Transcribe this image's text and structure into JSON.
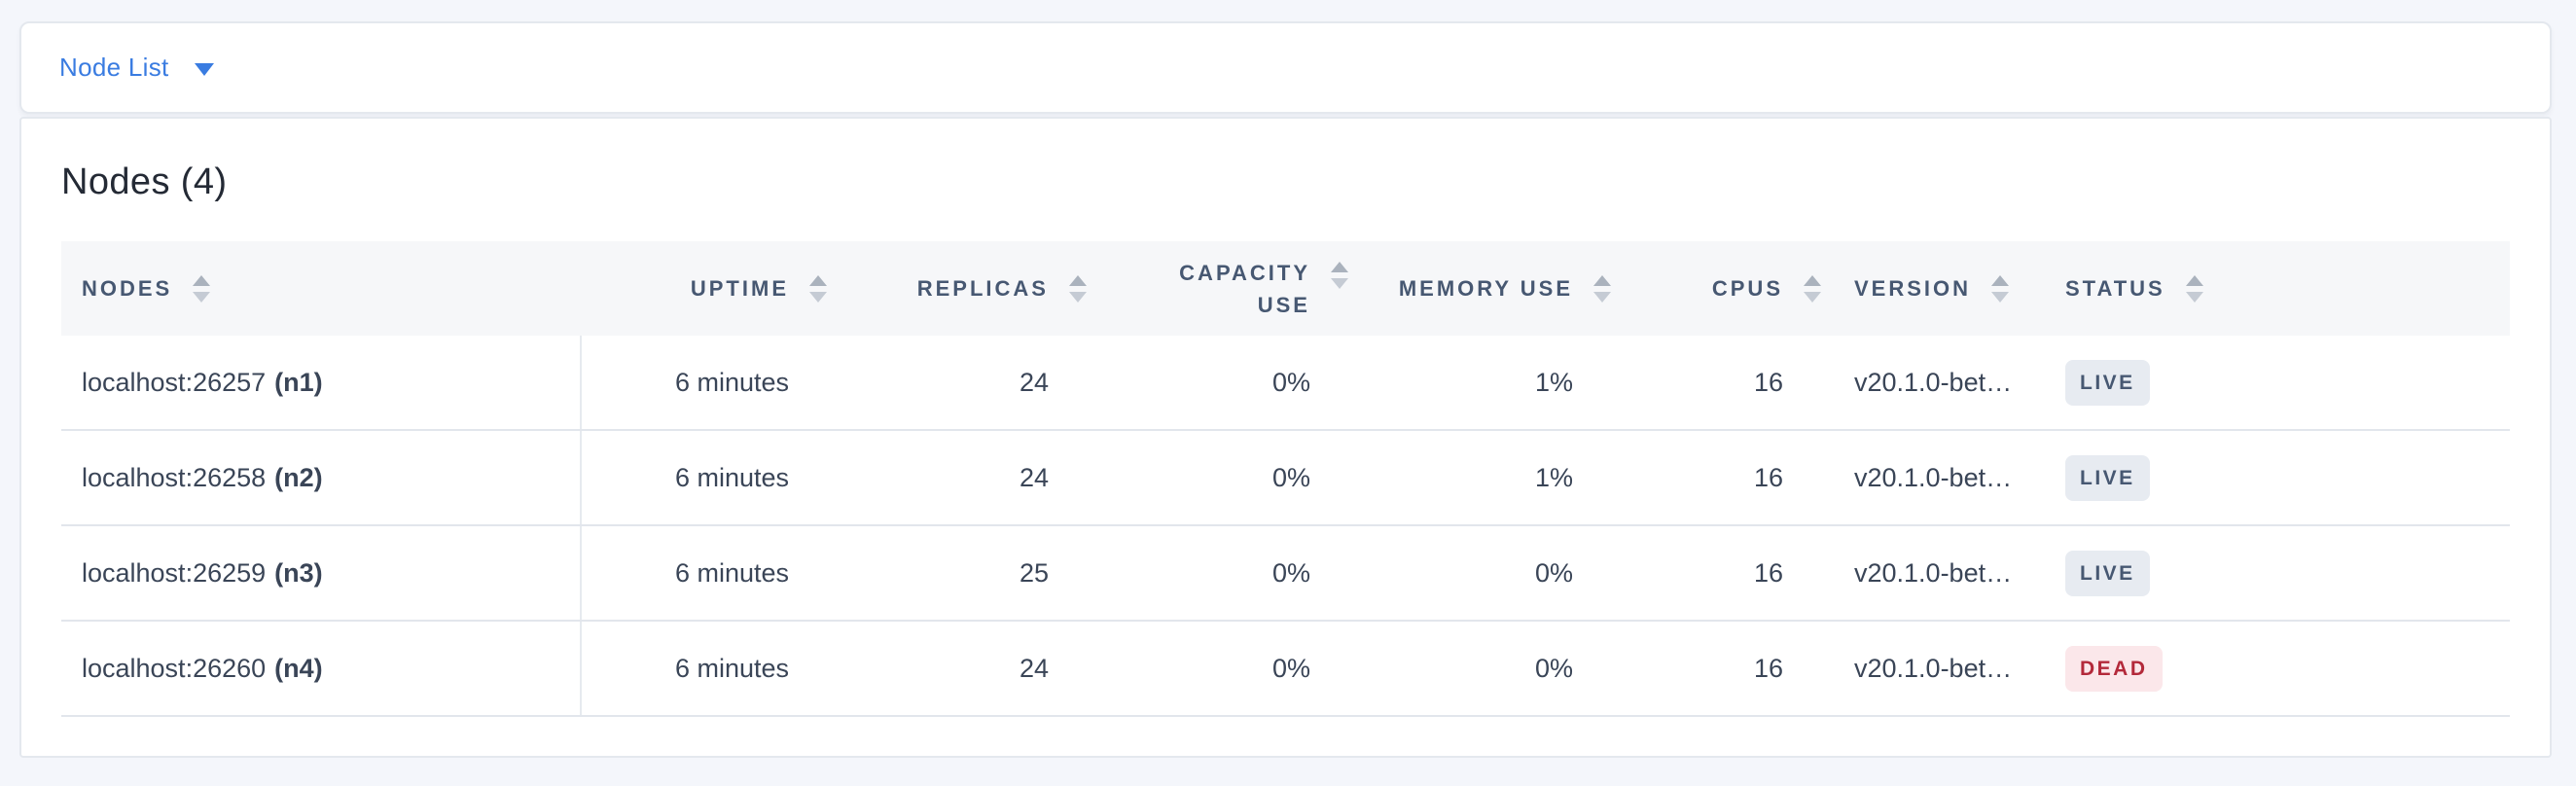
{
  "tab_bar": {
    "dropdown_label": "Node List"
  },
  "summary": {
    "title": "Nodes (4)"
  },
  "colors": {
    "accent_blue": "#3a7ce1",
    "header_text": "#475872",
    "cell_text": "#3a4557",
    "header_bg": "#f6f7f9",
    "live_badge_bg": "#e7ebf1",
    "live_badge_text": "#475872",
    "dead_badge_bg": "#fbe7ea",
    "dead_badge_text": "#b3293a"
  },
  "table": {
    "columns": [
      {
        "key": "nodes",
        "label": "NODES",
        "align": "left"
      },
      {
        "key": "uptime",
        "label": "UPTIME",
        "align": "right"
      },
      {
        "key": "replicas",
        "label": "REPLICAS",
        "align": "right"
      },
      {
        "key": "capacity_use",
        "label": "CAPACITY USE",
        "align": "right"
      },
      {
        "key": "memory_use",
        "label": "MEMORY USE",
        "align": "right"
      },
      {
        "key": "cpus",
        "label": "CPUS",
        "align": "right"
      },
      {
        "key": "version",
        "label": "VERSION",
        "align": "left"
      },
      {
        "key": "status",
        "label": "STATUS",
        "align": "left"
      }
    ],
    "rows": [
      {
        "address": "localhost:26257",
        "node_id": "(n1)",
        "uptime": "6 minutes",
        "replicas": "24",
        "capacity_use": "0%",
        "memory_use": "1%",
        "cpus": "16",
        "version": "v20.1.0-bet…",
        "status": "LIVE",
        "status_variant": "live"
      },
      {
        "address": "localhost:26258",
        "node_id": "(n2)",
        "uptime": "6 minutes",
        "replicas": "24",
        "capacity_use": "0%",
        "memory_use": "1%",
        "cpus": "16",
        "version": "v20.1.0-bet…",
        "status": "LIVE",
        "status_variant": "live"
      },
      {
        "address": "localhost:26259",
        "node_id": "(n3)",
        "uptime": "6 minutes",
        "replicas": "25",
        "capacity_use": "0%",
        "memory_use": "0%",
        "cpus": "16",
        "version": "v20.1.0-bet…",
        "status": "LIVE",
        "status_variant": "live"
      },
      {
        "address": "localhost:26260",
        "node_id": "(n4)",
        "uptime": "6 minutes",
        "replicas": "24",
        "capacity_use": "0%",
        "memory_use": "0%",
        "cpus": "16",
        "version": "v20.1.0-bet…",
        "status": "DEAD",
        "status_variant": "dead"
      }
    ]
  }
}
